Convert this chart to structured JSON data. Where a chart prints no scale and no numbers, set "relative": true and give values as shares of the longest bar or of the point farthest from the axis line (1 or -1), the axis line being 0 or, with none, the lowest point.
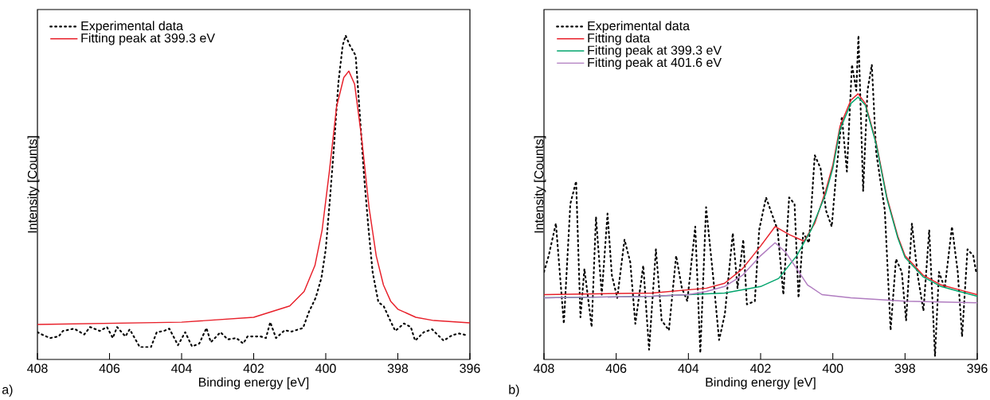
{
  "chart_data": [
    {
      "type": "line",
      "relative": true,
      "xlabel": "Binding energy [eV]",
      "ylabel": "Intensity [Counts]",
      "xlim": [
        408,
        396
      ],
      "xticks": [
        408,
        406,
        404,
        402,
        400,
        398,
        396
      ],
      "legend": "top left",
      "annotations": [
        "a)"
      ],
      "series": [
        {
          "name": "Experimental data",
          "color": "#000000",
          "line_style": "dotted",
          "x": [
            408.0,
            407.84,
            407.65,
            407.41,
            407.29,
            406.98,
            406.7,
            406.54,
            406.27,
            406.07,
            405.91,
            405.79,
            405.56,
            405.44,
            405.16,
            404.85,
            404.69,
            404.49,
            404.34,
            404.1,
            403.9,
            403.71,
            403.51,
            403.31,
            403.19,
            402.92,
            402.72,
            402.48,
            402.29,
            402.17,
            401.81,
            401.66,
            401.54,
            401.38,
            401.14,
            400.95,
            400.63,
            400.47,
            400.28,
            400.12,
            400.0,
            399.88,
            399.77,
            399.65,
            399.53,
            399.45,
            399.33,
            399.17,
            399.06,
            398.94,
            398.82,
            398.7,
            398.54,
            398.39,
            398.19,
            398.07,
            397.83,
            397.64,
            397.52,
            397.28,
            397.05,
            396.73,
            396.49,
            396.3,
            396.1
          ],
          "values": [
            0.084,
            0.075,
            0.066,
            0.071,
            0.088,
            0.095,
            0.077,
            0.1,
            0.088,
            0.1,
            0.066,
            0.1,
            0.071,
            0.093,
            0.038,
            0.038,
            0.084,
            0.088,
            0.095,
            0.044,
            0.084,
            0.04,
            0.049,
            0.097,
            0.053,
            0.084,
            0.062,
            0.066,
            0.049,
            0.071,
            0.071,
            0.066,
            0.115,
            0.066,
            0.09,
            0.086,
            0.097,
            0.146,
            0.19,
            0.252,
            0.34,
            0.5,
            0.66,
            0.854,
            0.969,
            1.0,
            0.969,
            0.938,
            0.765,
            0.571,
            0.411,
            0.27,
            0.177,
            0.164,
            0.115,
            0.088,
            0.111,
            0.1,
            0.058,
            0.084,
            0.093,
            0.058,
            0.075,
            0.08,
            0.075
          ]
        },
        {
          "name": "Fitting peak at 399.3 eV",
          "color": "#e8202a",
          "line_style": "solid",
          "x": [
            408,
            404,
            402,
            401,
            400.6,
            400.3,
            400.1,
            399.9,
            399.7,
            399.5,
            399.36,
            399.2,
            399.0,
            398.8,
            398.6,
            398.4,
            398.2,
            398,
            397.5,
            397,
            396
          ],
          "values": [
            0.108,
            0.115,
            0.13,
            0.165,
            0.21,
            0.29,
            0.4,
            0.58,
            0.78,
            0.87,
            0.89,
            0.85,
            0.68,
            0.47,
            0.32,
            0.23,
            0.18,
            0.155,
            0.13,
            0.12,
            0.113
          ]
        }
      ]
    },
    {
      "type": "line",
      "relative": true,
      "xlabel": "Binding energy [eV]",
      "ylabel": "Intensity [Counts]",
      "xlim": [
        408,
        396
      ],
      "xticks": [
        408,
        406,
        404,
        402,
        400,
        398,
        396
      ],
      "legend": "top left",
      "annotations": [
        "b)"
      ],
      "series": [
        {
          "name": "Experimental data",
          "color": "#000000",
          "line_style": "dotted",
          "x": [
            408.0,
            407.87,
            407.67,
            407.45,
            407.27,
            407.11,
            406.99,
            406.88,
            406.68,
            406.56,
            406.4,
            406.24,
            406.12,
            405.97,
            405.77,
            405.61,
            405.47,
            405.25,
            405.09,
            404.9,
            404.74,
            404.54,
            404.34,
            404.18,
            404.03,
            403.81,
            403.67,
            403.51,
            403.31,
            403.15,
            402.99,
            402.77,
            402.64,
            402.48,
            402.38,
            402.16,
            402.04,
            401.85,
            401.69,
            401.53,
            401.37,
            401.21,
            401.06,
            400.95,
            400.82,
            400.66,
            400.5,
            400.34,
            400.19,
            400.03,
            399.91,
            399.75,
            399.61,
            399.47,
            399.35,
            399.29,
            399.16,
            399.04,
            398.92,
            398.8,
            398.68,
            398.56,
            398.4,
            398.25,
            398.09,
            397.97,
            397.81,
            397.65,
            397.49,
            397.33,
            397.17,
            397.06,
            396.9,
            396.7,
            396.54,
            396.42,
            396.27,
            396.11,
            396.03
          ],
          "values": [
            0.27,
            0.32,
            0.42,
            0.11,
            0.48,
            0.55,
            0.13,
            0.28,
            0.1,
            0.44,
            0.2,
            0.45,
            0.26,
            0.19,
            0.37,
            0.3,
            0.11,
            0.29,
            0.03,
            0.34,
            0.12,
            0.09,
            0.32,
            0.22,
            0.18,
            0.41,
            0.02,
            0.47,
            0.25,
            0.06,
            0.14,
            0.39,
            0.22,
            0.37,
            0.17,
            0.18,
            0.4,
            0.5,
            0.45,
            0.4,
            0.2,
            0.5,
            0.48,
            0.19,
            0.39,
            0.36,
            0.63,
            0.59,
            0.46,
            0.41,
            0.57,
            0.75,
            0.58,
            0.91,
            0.83,
            1.0,
            0.52,
            0.83,
            0.91,
            0.64,
            0.55,
            0.46,
            0.09,
            0.31,
            0.27,
            0.12,
            0.42,
            0.26,
            0.15,
            0.4,
            0.01,
            0.27,
            0.22,
            0.41,
            0.27,
            0.07,
            0.34,
            0.32,
            0.27
          ]
        },
        {
          "name": "Fitting data",
          "color": "#e8202a",
          "line_style": "solid",
          "x": [
            408,
            405,
            403.5,
            403,
            402.5,
            402,
            401.6,
            401.2,
            400.8,
            400.5,
            400.2,
            400,
            399.8,
            399.5,
            399.3,
            399.1,
            398.8,
            398.5,
            398.2,
            398,
            397.5,
            397,
            396.5,
            396
          ],
          "values": [
            0.2,
            0.205,
            0.22,
            0.235,
            0.28,
            0.35,
            0.41,
            0.385,
            0.365,
            0.42,
            0.52,
            0.6,
            0.72,
            0.8,
            0.82,
            0.79,
            0.67,
            0.5,
            0.38,
            0.32,
            0.26,
            0.23,
            0.215,
            0.2
          ]
        },
        {
          "name": "Fitting peak at 399.3 eV",
          "color": "#00a46c",
          "line_style": "solid",
          "x": [
            408,
            405,
            403,
            402,
            401.5,
            401,
            400.6,
            400.2,
            400,
            399.8,
            399.5,
            399.3,
            399.1,
            398.8,
            398.5,
            398.2,
            398,
            397.5,
            397,
            396.5,
            396
          ],
          "values": [
            0.19,
            0.195,
            0.205,
            0.225,
            0.25,
            0.32,
            0.4,
            0.51,
            0.59,
            0.71,
            0.79,
            0.81,
            0.785,
            0.665,
            0.495,
            0.375,
            0.315,
            0.255,
            0.225,
            0.21,
            0.195
          ]
        },
        {
          "name": "Fitting peak at 401.6 eV",
          "color": "#b07cc0",
          "line_style": "solid",
          "x": [
            408,
            405,
            404,
            403.5,
            403,
            402.5,
            402,
            401.6,
            401.3,
            401,
            400.7,
            400.3,
            399.5,
            398,
            396
          ],
          "values": [
            0.19,
            0.195,
            0.2,
            0.21,
            0.225,
            0.26,
            0.32,
            0.36,
            0.33,
            0.28,
            0.23,
            0.2,
            0.19,
            0.18,
            0.175
          ]
        }
      ]
    }
  ]
}
